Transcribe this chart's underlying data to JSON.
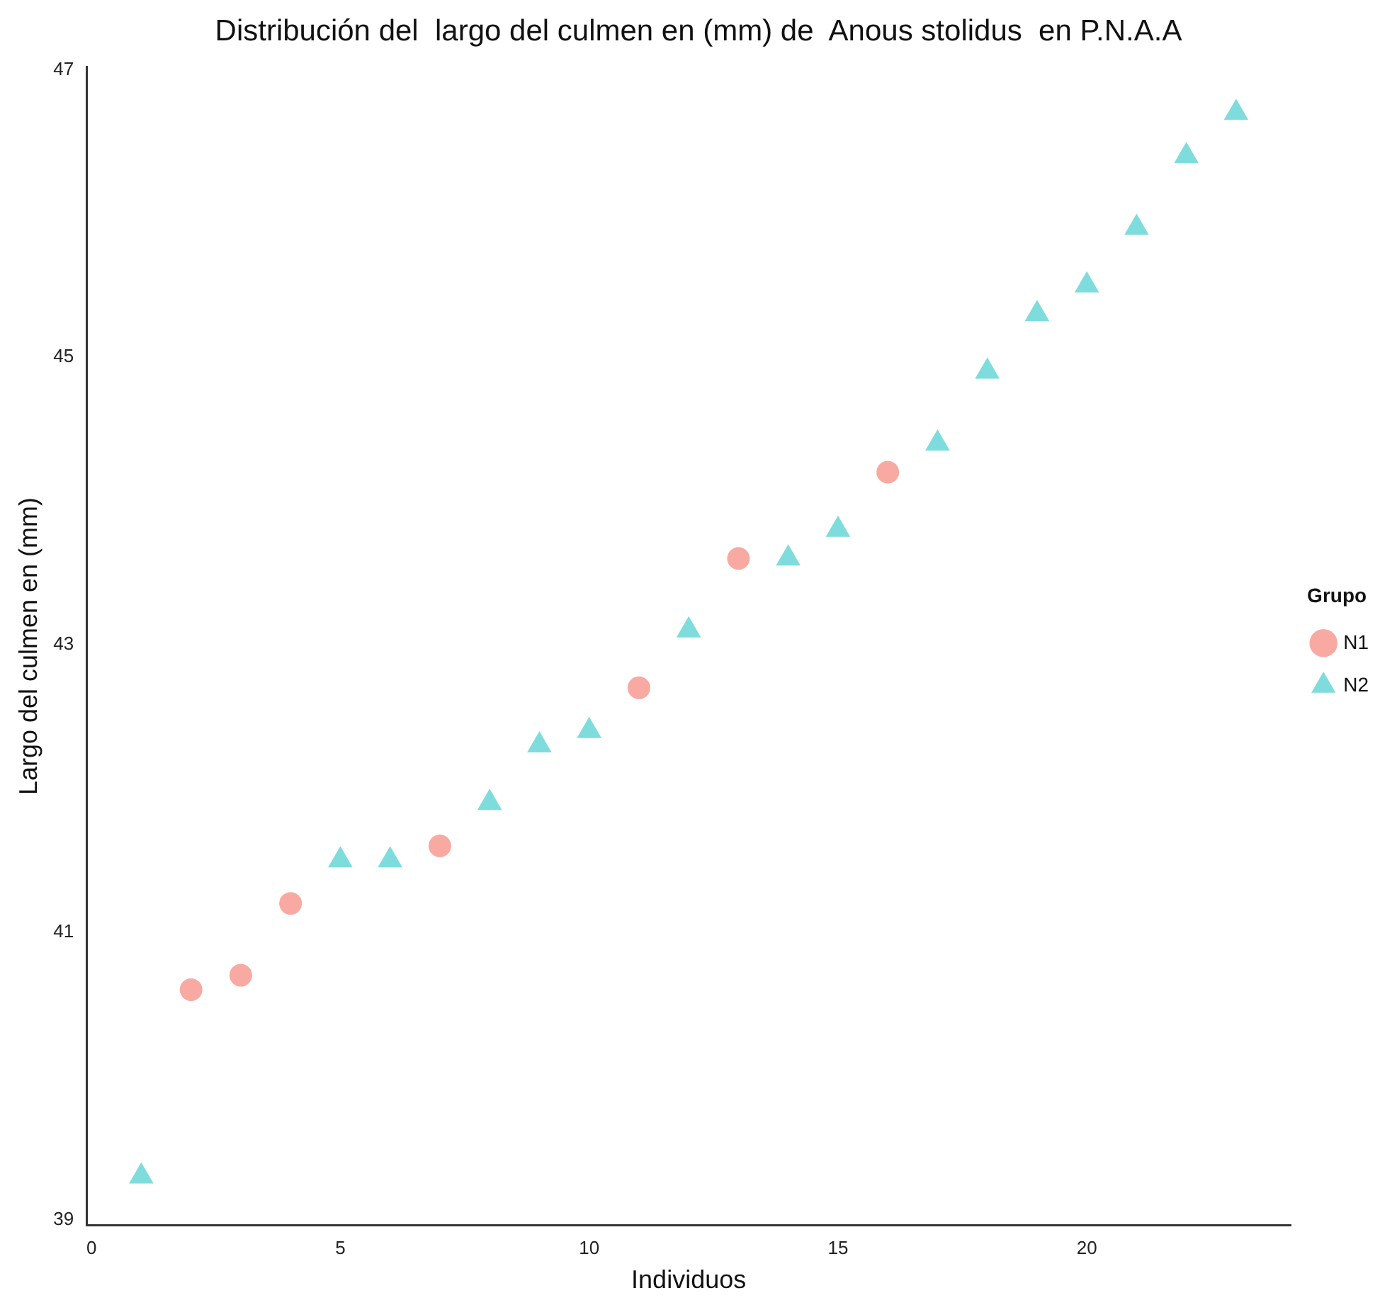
{
  "chart_data": {
    "type": "scatter",
    "title": "Distribución del  largo del culmen en (mm) de  Anous stolidus  en P.N.A.A",
    "xlabel": "Individuos",
    "ylabel": "Largo del culmen en (mm)",
    "legend_title": "Grupo",
    "legend": "right",
    "grid": false,
    "xlim": [
      -0.1,
      24.1
    ],
    "xticks": [
      0,
      5,
      10,
      15,
      20
    ],
    "ylim": [
      38.96,
      47.02
    ],
    "yticks": [
      39,
      41,
      43,
      45,
      47
    ],
    "series": [
      {
        "name": "N1",
        "color": "#f8aaa2",
        "marker": "circle",
        "x": [
          2,
          3,
          4,
          7,
          11,
          13,
          16
        ],
        "values": [
          40.6,
          40.7,
          41.2,
          41.6,
          42.7,
          43.6,
          44.2
        ]
      },
      {
        "name": "N2",
        "color": "#7fdcdc",
        "marker": "triangle",
        "x": [
          1,
          5,
          6,
          8,
          9,
          10,
          12,
          14,
          15,
          17,
          18,
          19,
          20,
          21,
          22,
          23
        ],
        "values": [
          39.3,
          41.5,
          41.5,
          41.9,
          42.3,
          42.4,
          43.1,
          43.6,
          43.8,
          44.4,
          44.9,
          45.3,
          45.5,
          45.9,
          46.4,
          46.7
        ]
      }
    ]
  }
}
